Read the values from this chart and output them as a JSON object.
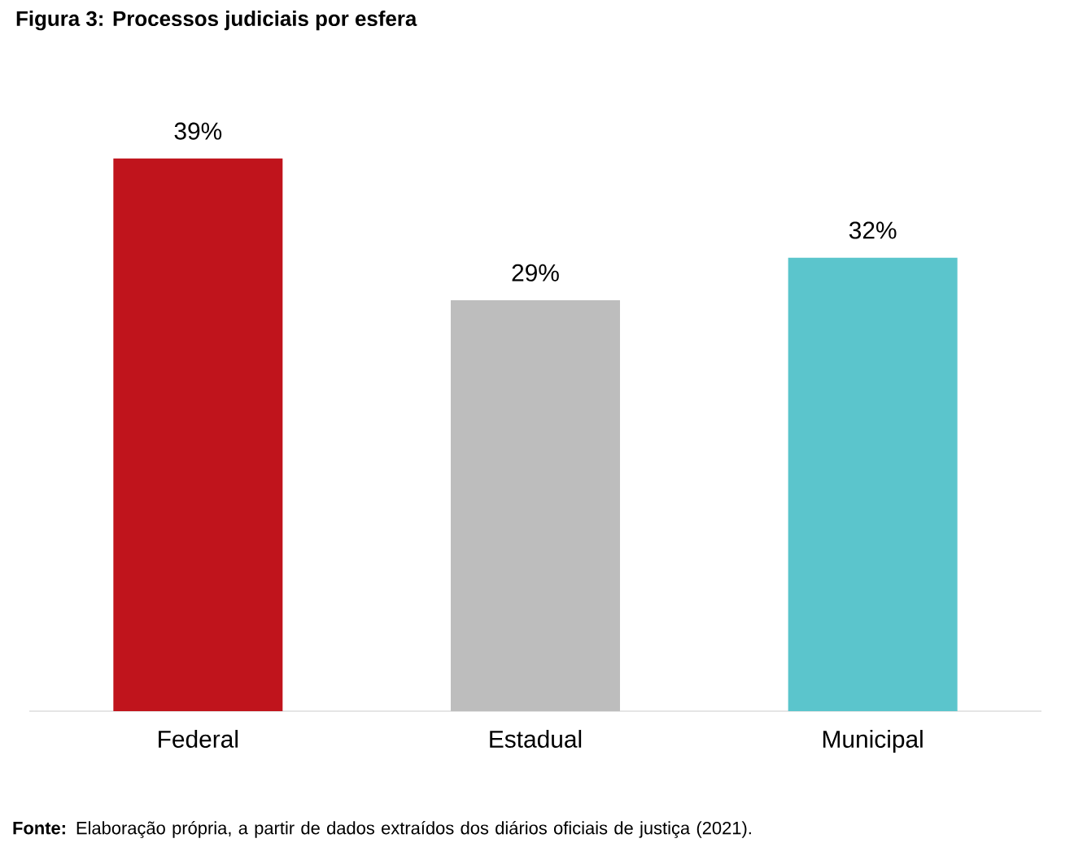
{
  "chart_data": {
    "type": "bar",
    "title": "Figura 3: Processos judiciais por esfera",
    "categories": [
      "Federal",
      "Estadual",
      "Municipal"
    ],
    "values": [
      39,
      29,
      32
    ],
    "colors": [
      "#c0141c",
      "#bdbdbd",
      "#5bc5cc"
    ],
    "value_labels": [
      "39%",
      "29%",
      "32%"
    ],
    "annotations": [
      "**Fonte:** Elaboração própria, a partir de dados extraídos dos diários oficiais de justiça (2021)."
    ]
  }
}
